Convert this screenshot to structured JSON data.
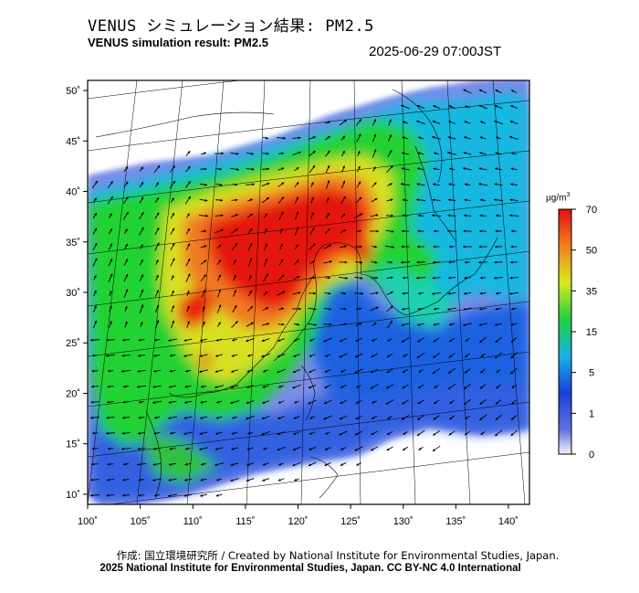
{
  "header": {
    "title_jp": "VENUS シミュレーション結果: PM2.5",
    "title_en": "VENUS simulation result: PM2.5",
    "timestamp": "2025-06-29 07:00JST"
  },
  "map": {
    "lon_ticks": [
      "100˚",
      "105˚",
      "110˚",
      "115˚",
      "120˚",
      "125˚",
      "130˚",
      "135˚",
      "140˚"
    ],
    "lat_ticks": [
      "10˚",
      "15˚",
      "20˚",
      "25˚",
      "30˚",
      "35˚",
      "40˚",
      "45˚",
      "50˚"
    ],
    "lon_values": [
      100,
      105,
      110,
      115,
      120,
      125,
      130,
      135,
      140
    ],
    "lat_values": [
      10,
      15,
      20,
      25,
      30,
      35,
      40,
      45,
      50
    ],
    "lon_range": [
      100,
      142
    ],
    "lat_range": [
      9,
      51
    ]
  },
  "colorbar": {
    "unit": "μg/m",
    "unit_sup": "3",
    "ticks": [
      "70",
      "50",
      "35",
      "15",
      "5",
      "1",
      "0"
    ],
    "tick_values": [
      70,
      50,
      35,
      15,
      5,
      1,
      0
    ],
    "colors": [
      "#f2f2f8",
      "#1a4fd0",
      "#1aa8e0",
      "#20e020",
      "#e8e020",
      "#f07020",
      "#e02010"
    ]
  },
  "footer": {
    "credit_jp": "作成: 国立環境研究所 / Created by National Institute for Environmental Studies, Japan.",
    "credit_en": "2025 National Institute for Environmental Studies, Japan. CC BY-NC 4.0 International"
  }
}
